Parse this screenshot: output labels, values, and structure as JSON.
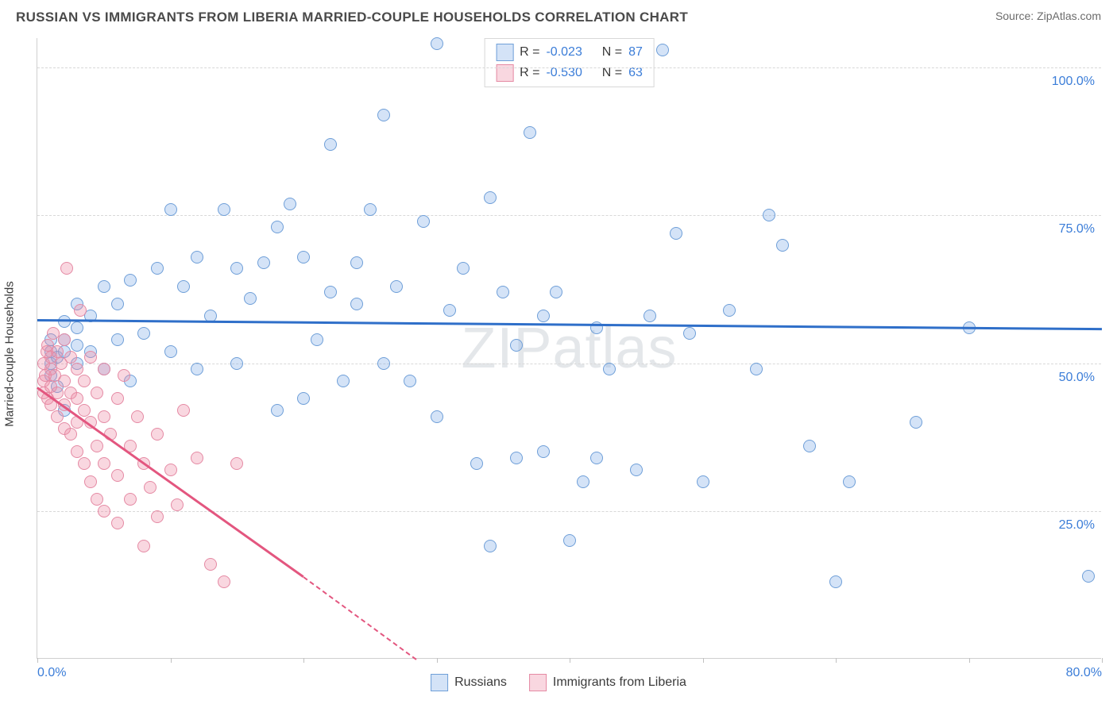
{
  "title": "RUSSIAN VS IMMIGRANTS FROM LIBERIA MARRIED-COUPLE HOUSEHOLDS CORRELATION CHART",
  "source": "Source: ZipAtlas.com",
  "watermark": "ZIPatlas",
  "yaxis_label": "Married-couple Households",
  "chart": {
    "type": "scatter",
    "xlim": [
      0,
      80
    ],
    "ylim": [
      0,
      105
    ],
    "yticks": [
      25.0,
      50.0,
      75.0,
      100.0
    ],
    "ytick_labels": [
      "25.0%",
      "50.0%",
      "75.0%",
      "100.0%"
    ],
    "xticks": [
      0,
      10,
      20,
      30,
      40,
      50,
      60,
      70,
      80
    ],
    "xtick_labels": {
      "first": "0.0%",
      "last": "80.0%"
    },
    "grid_color": "#d8d8d8",
    "background_color": "#ffffff",
    "series": [
      {
        "name": "Russians",
        "fill": "rgba(131,174,231,0.35)",
        "stroke": "#6f9fd8",
        "trend_color": "#2f6fc9",
        "R": "-0.023",
        "N": "87",
        "trend": {
          "x1": 0,
          "y1": 57.5,
          "x2": 80,
          "y2": 56.0
        },
        "points": [
          [
            1,
            48
          ],
          [
            1,
            50
          ],
          [
            1,
            52
          ],
          [
            1,
            54
          ],
          [
            1.5,
            46
          ],
          [
            1.5,
            51
          ],
          [
            2,
            52
          ],
          [
            2,
            54
          ],
          [
            2,
            57
          ],
          [
            2,
            42
          ],
          [
            3,
            50
          ],
          [
            3,
            53
          ],
          [
            3,
            56
          ],
          [
            3,
            60
          ],
          [
            4,
            52
          ],
          [
            4,
            58
          ],
          [
            5,
            63
          ],
          [
            5,
            49
          ],
          [
            6,
            54
          ],
          [
            6,
            60
          ],
          [
            7,
            47
          ],
          [
            7,
            64
          ],
          [
            8,
            55
          ],
          [
            9,
            66
          ],
          [
            10,
            76
          ],
          [
            10,
            52
          ],
          [
            11,
            63
          ],
          [
            12,
            68
          ],
          [
            12,
            49
          ],
          [
            13,
            58
          ],
          [
            14,
            76
          ],
          [
            15,
            66
          ],
          [
            15,
            50
          ],
          [
            16,
            61
          ],
          [
            17,
            67
          ],
          [
            18,
            42
          ],
          [
            18,
            73
          ],
          [
            19,
            77
          ],
          [
            20,
            68
          ],
          [
            20,
            44
          ],
          [
            21,
            54
          ],
          [
            22,
            62
          ],
          [
            22,
            87
          ],
          [
            23,
            47
          ],
          [
            24,
            60
          ],
          [
            24,
            67
          ],
          [
            25,
            76
          ],
          [
            26,
            92
          ],
          [
            26,
            50
          ],
          [
            27,
            63
          ],
          [
            28,
            47
          ],
          [
            29,
            74
          ],
          [
            30,
            41
          ],
          [
            30,
            104
          ],
          [
            31,
            59
          ],
          [
            32,
            66
          ],
          [
            33,
            33
          ],
          [
            34,
            78
          ],
          [
            34,
            19
          ],
          [
            35,
            62
          ],
          [
            36,
            53
          ],
          [
            36,
            34
          ],
          [
            37,
            89
          ],
          [
            38,
            58
          ],
          [
            38,
            35
          ],
          [
            39,
            62
          ],
          [
            40,
            20
          ],
          [
            41,
            30
          ],
          [
            42,
            56
          ],
          [
            42,
            34
          ],
          [
            43,
            49
          ],
          [
            45,
            32
          ],
          [
            46,
            58
          ],
          [
            47,
            103
          ],
          [
            48,
            72
          ],
          [
            49,
            55
          ],
          [
            50,
            30
          ],
          [
            52,
            59
          ],
          [
            54,
            49
          ],
          [
            55,
            75
          ],
          [
            56,
            70
          ],
          [
            58,
            36
          ],
          [
            60,
            13
          ],
          [
            61,
            30
          ],
          [
            66,
            40
          ],
          [
            70,
            56
          ],
          [
            79,
            14
          ]
        ]
      },
      {
        "name": "Immigrants from Liberia",
        "fill": "rgba(239,140,166,0.35)",
        "stroke": "#e58aa4",
        "trend_color": "#e3567f",
        "R": "-0.530",
        "N": "63",
        "trend": {
          "x1": 0,
          "y1": 46.0,
          "x2": 20,
          "y2": 14.0
        },
        "trend_dash": {
          "x1": 20,
          "y1": 14.0,
          "x2": 28.5,
          "y2": 0.0
        },
        "points": [
          [
            0.5,
            50
          ],
          [
            0.5,
            47
          ],
          [
            0.5,
            45
          ],
          [
            0.6,
            48
          ],
          [
            0.7,
            52
          ],
          [
            0.8,
            53
          ],
          [
            0.8,
            44
          ],
          [
            1,
            51
          ],
          [
            1,
            49
          ],
          [
            1,
            46
          ],
          [
            1,
            43
          ],
          [
            1.2,
            55
          ],
          [
            1.3,
            48
          ],
          [
            1.5,
            52
          ],
          [
            1.5,
            45
          ],
          [
            1.5,
            41
          ],
          [
            1.8,
            50
          ],
          [
            2,
            54
          ],
          [
            2,
            47
          ],
          [
            2,
            43
          ],
          [
            2,
            39
          ],
          [
            2.2,
            66
          ],
          [
            2.5,
            51
          ],
          [
            2.5,
            45
          ],
          [
            2.5,
            38
          ],
          [
            3,
            49
          ],
          [
            3,
            44
          ],
          [
            3,
            40
          ],
          [
            3,
            35
          ],
          [
            3.2,
            59
          ],
          [
            3.5,
            47
          ],
          [
            3.5,
            42
          ],
          [
            3.5,
            33
          ],
          [
            4,
            51
          ],
          [
            4,
            40
          ],
          [
            4,
            30
          ],
          [
            4.5,
            45
          ],
          [
            4.5,
            36
          ],
          [
            4.5,
            27
          ],
          [
            5,
            49
          ],
          [
            5,
            41
          ],
          [
            5,
            33
          ],
          [
            5,
            25
          ],
          [
            5.5,
            38
          ],
          [
            6,
            44
          ],
          [
            6,
            31
          ],
          [
            6,
            23
          ],
          [
            6.5,
            48
          ],
          [
            7,
            36
          ],
          [
            7,
            27
          ],
          [
            7.5,
            41
          ],
          [
            8,
            33
          ],
          [
            8,
            19
          ],
          [
            8.5,
            29
          ],
          [
            9,
            38
          ],
          [
            9,
            24
          ],
          [
            10,
            32
          ],
          [
            10.5,
            26
          ],
          [
            11,
            42
          ],
          [
            12,
            34
          ],
          [
            13,
            16
          ],
          [
            14,
            13
          ],
          [
            15,
            33
          ]
        ]
      }
    ]
  },
  "legend_top": {
    "r_label": "R =",
    "n_label": "N ="
  },
  "legend_bottom": {
    "items": [
      "Russians",
      "Immigrants from Liberia"
    ]
  }
}
